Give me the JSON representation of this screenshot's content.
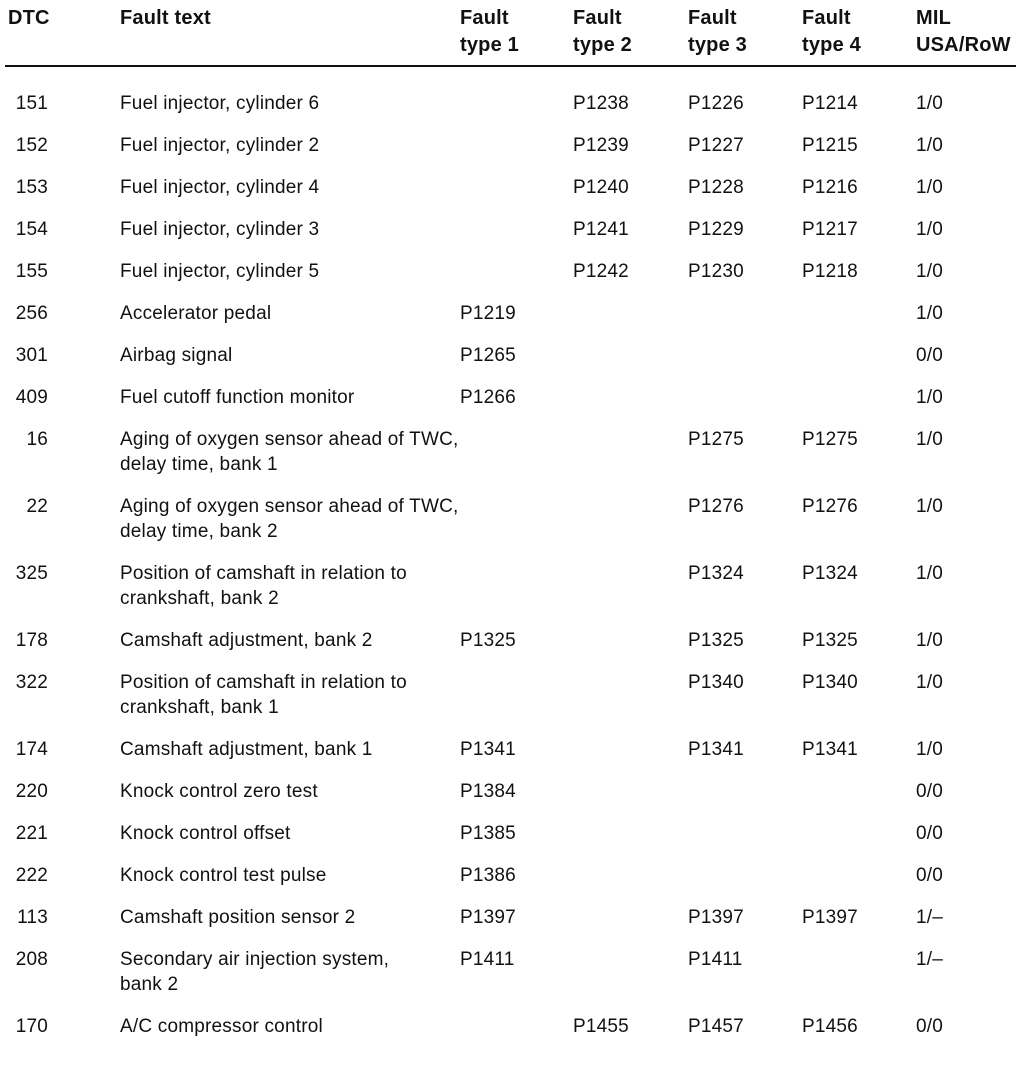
{
  "table": {
    "columns": [
      {
        "key": "dtc",
        "label": "DTC"
      },
      {
        "key": "fault_text",
        "label": "Fault text"
      },
      {
        "key": "type1",
        "label": "Fault\ntype 1"
      },
      {
        "key": "type2",
        "label": "Fault\ntype 2"
      },
      {
        "key": "type3",
        "label": "Fault\ntype 3"
      },
      {
        "key": "type4",
        "label": "Fault\ntype 4"
      },
      {
        "key": "mil",
        "label": "MIL\nUSA/RoW"
      }
    ],
    "rows": [
      {
        "dtc": "151",
        "fault_text": "Fuel injector, cylinder 6",
        "type1": "",
        "type2": "P1238",
        "type3": "P1226",
        "type4": "P1214",
        "mil": "1/0"
      },
      {
        "dtc": "152",
        "fault_text": "Fuel injector, cylinder 2",
        "type1": "",
        "type2": "P1239",
        "type3": "P1227",
        "type4": "P1215",
        "mil": "1/0"
      },
      {
        "dtc": "153",
        "fault_text": "Fuel injector, cylinder 4",
        "type1": "",
        "type2": "P1240",
        "type3": "P1228",
        "type4": "P1216",
        "mil": "1/0"
      },
      {
        "dtc": "154",
        "fault_text": "Fuel injector, cylinder 3",
        "type1": "",
        "type2": "P1241",
        "type3": "P1229",
        "type4": "P1217",
        "mil": "1/0"
      },
      {
        "dtc": "155",
        "fault_text": "Fuel injector, cylinder 5",
        "type1": "",
        "type2": "P1242",
        "type3": "P1230",
        "type4": "P1218",
        "mil": "1/0"
      },
      {
        "dtc": "256",
        "fault_text": "Accelerator pedal",
        "type1": "P1219",
        "type2": "",
        "type3": "",
        "type4": "",
        "mil": "1/0"
      },
      {
        "dtc": "301",
        "fault_text": "Airbag signal",
        "type1": "P1265",
        "type2": "",
        "type3": "",
        "type4": "",
        "mil": "0/0"
      },
      {
        "dtc": "409",
        "fault_text": "Fuel cutoff function monitor",
        "type1": "P1266",
        "type2": "",
        "type3": "",
        "type4": "",
        "mil": "1/0"
      },
      {
        "dtc": "16",
        "fault_text": "Aging of oxygen sensor ahead of TWC,\ndelay time, bank 1",
        "type1": "",
        "type2": "",
        "type3": "P1275",
        "type4": "P1275",
        "mil": "1/0"
      },
      {
        "dtc": "22",
        "fault_text": "Aging of oxygen sensor ahead of TWC,\ndelay time, bank 2",
        "type1": "",
        "type2": "",
        "type3": "P1276",
        "type4": "P1276",
        "mil": "1/0"
      },
      {
        "dtc": "325",
        "fault_text": "Position of camshaft in relation to\ncrankshaft, bank 2",
        "type1": "",
        "type2": "",
        "type3": "P1324",
        "type4": "P1324",
        "mil": "1/0"
      },
      {
        "dtc": "178",
        "fault_text": "Camshaft adjustment, bank 2",
        "type1": "P1325",
        "type2": "",
        "type3": "P1325",
        "type4": "P1325",
        "mil": "1/0"
      },
      {
        "dtc": "322",
        "fault_text": "Position of camshaft in relation to\ncrankshaft, bank 1",
        "type1": "",
        "type2": "",
        "type3": "P1340",
        "type4": "P1340",
        "mil": "1/0"
      },
      {
        "dtc": "174",
        "fault_text": "Camshaft adjustment, bank 1",
        "type1": "P1341",
        "type2": "",
        "type3": "P1341",
        "type4": "P1341",
        "mil": "1/0"
      },
      {
        "dtc": "220",
        "fault_text": "Knock control zero test",
        "type1": "P1384",
        "type2": "",
        "type3": "",
        "type4": "",
        "mil": "0/0"
      },
      {
        "dtc": "221",
        "fault_text": "Knock control offset",
        "type1": "P1385",
        "type2": "",
        "type3": "",
        "type4": "",
        "mil": "0/0"
      },
      {
        "dtc": "222",
        "fault_text": "Knock control test pulse",
        "type1": "P1386",
        "type2": "",
        "type3": "",
        "type4": "",
        "mil": "0/0"
      },
      {
        "dtc": "113",
        "fault_text": "Camshaft position sensor 2",
        "type1": "P1397",
        "type2": "",
        "type3": "P1397",
        "type4": "P1397",
        "mil": "1/–"
      },
      {
        "dtc": "208",
        "fault_text": "Secondary air injection system,\nbank 2",
        "type1": "P1411",
        "type2": "",
        "type3": "P1411",
        "type4": "",
        "mil": "1/–"
      },
      {
        "dtc": "170",
        "fault_text": "A/C compressor control",
        "type1": "",
        "type2": "P1455",
        "type3": "P1457",
        "type4": "P1456",
        "mil": "0/0"
      }
    ]
  }
}
